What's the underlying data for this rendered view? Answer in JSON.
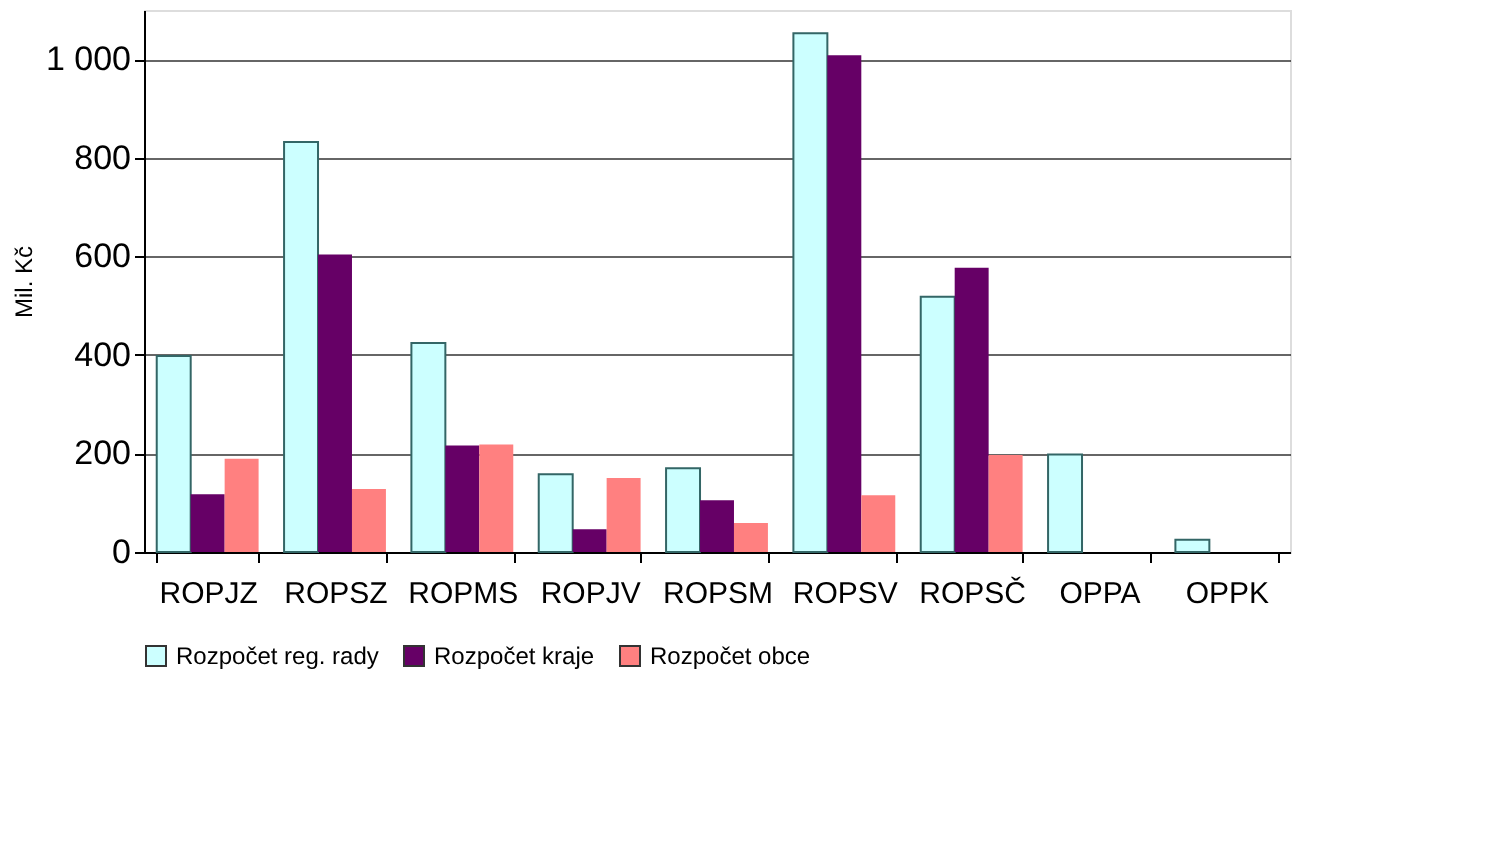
{
  "chart_data": {
    "type": "bar",
    "ylabel": "Mil. Kč",
    "categories": [
      "ROPJZ",
      "ROPSZ",
      "ROPMS",
      "ROPJV",
      "ROPSM",
      "ROPSV",
      "ROPSČ",
      "OPPA",
      "OPPK"
    ],
    "series": [
      {
        "name": "Rozpočet reg. rady",
        "color": "#ccffff",
        "values": [
          398,
          832,
          424,
          158,
          170,
          1053,
          518,
          198,
          25
        ]
      },
      {
        "name": "Rozpočet kraje",
        "color": "#660066",
        "values": [
          117,
          604,
          216,
          46,
          105,
          1008,
          577,
          null,
          null
        ]
      },
      {
        "name": "Rozpočet obce",
        "color": "#ff8080",
        "values": [
          189,
          128,
          218,
          150,
          59,
          115,
          197,
          null,
          null
        ]
      }
    ],
    "ylim": [
      0,
      1100
    ],
    "yticks": [
      0,
      200,
      400,
      600,
      800,
      {
        "value": 1000,
        "label": "1 000"
      }
    ],
    "grid": "y",
    "legend": "bottom"
  }
}
